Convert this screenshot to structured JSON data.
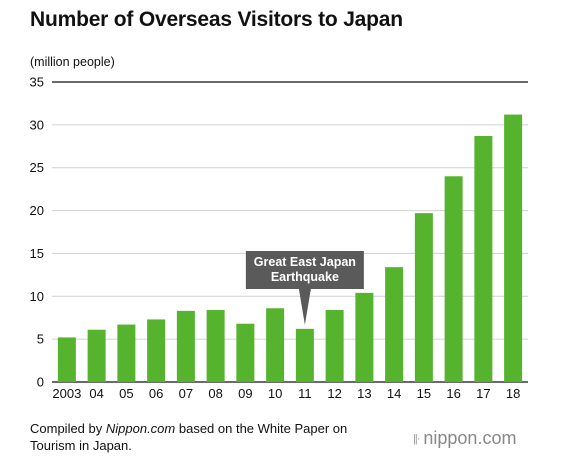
{
  "header": {
    "title": "Number of Overseas Visitors to Japan",
    "unit": "(million people)"
  },
  "caption": {
    "prefix": "Compiled by ",
    "source": "Nippon.com",
    "suffix": " based on the White Paper on",
    "line2": "Tourism in Japan."
  },
  "logo": {
    "text": "nippon.com"
  },
  "colors": {
    "bar": "#55b32e",
    "callout": "#5a5a5a",
    "grid": "#d0d0d0",
    "axis": "#111111"
  },
  "chart_data": {
    "type": "bar",
    "title": "Number of Overseas Visitors to Japan",
    "ylabel": "(million people)",
    "xlabel": "",
    "categories": [
      "2003",
      "04",
      "05",
      "06",
      "07",
      "08",
      "09",
      "10",
      "11",
      "12",
      "13",
      "14",
      "15",
      "16",
      "17",
      "18"
    ],
    "values": [
      5.2,
      6.1,
      6.7,
      7.3,
      8.3,
      8.4,
      6.8,
      8.6,
      6.2,
      8.4,
      10.4,
      13.4,
      19.7,
      24.0,
      28.7,
      31.2
    ],
    "ylim": [
      0,
      35
    ],
    "yticks": [
      0,
      5,
      10,
      15,
      20,
      25,
      30,
      35
    ],
    "grid": true,
    "annotations": [
      {
        "category": "11",
        "lines": [
          "Great East Japan",
          "Earthquake"
        ]
      }
    ]
  }
}
